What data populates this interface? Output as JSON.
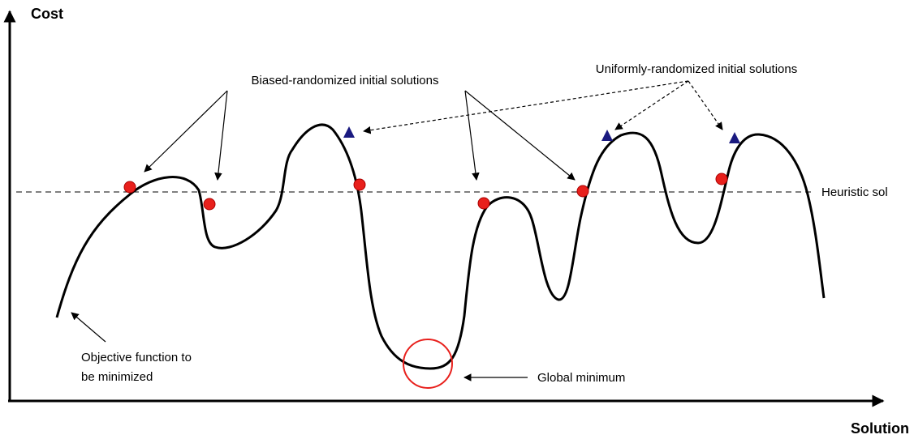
{
  "axes": {
    "y_label": "Cost",
    "x_label": "Solution"
  },
  "labels": {
    "biased": "Biased-randomized initial solutions",
    "uniform": "Uniformly-randomized initial solutions",
    "heuristic": "Heuristic sol",
    "objective": [
      "Objective function to",
      "be minimized"
    ],
    "global_minimum": "Global minimum"
  }
}
